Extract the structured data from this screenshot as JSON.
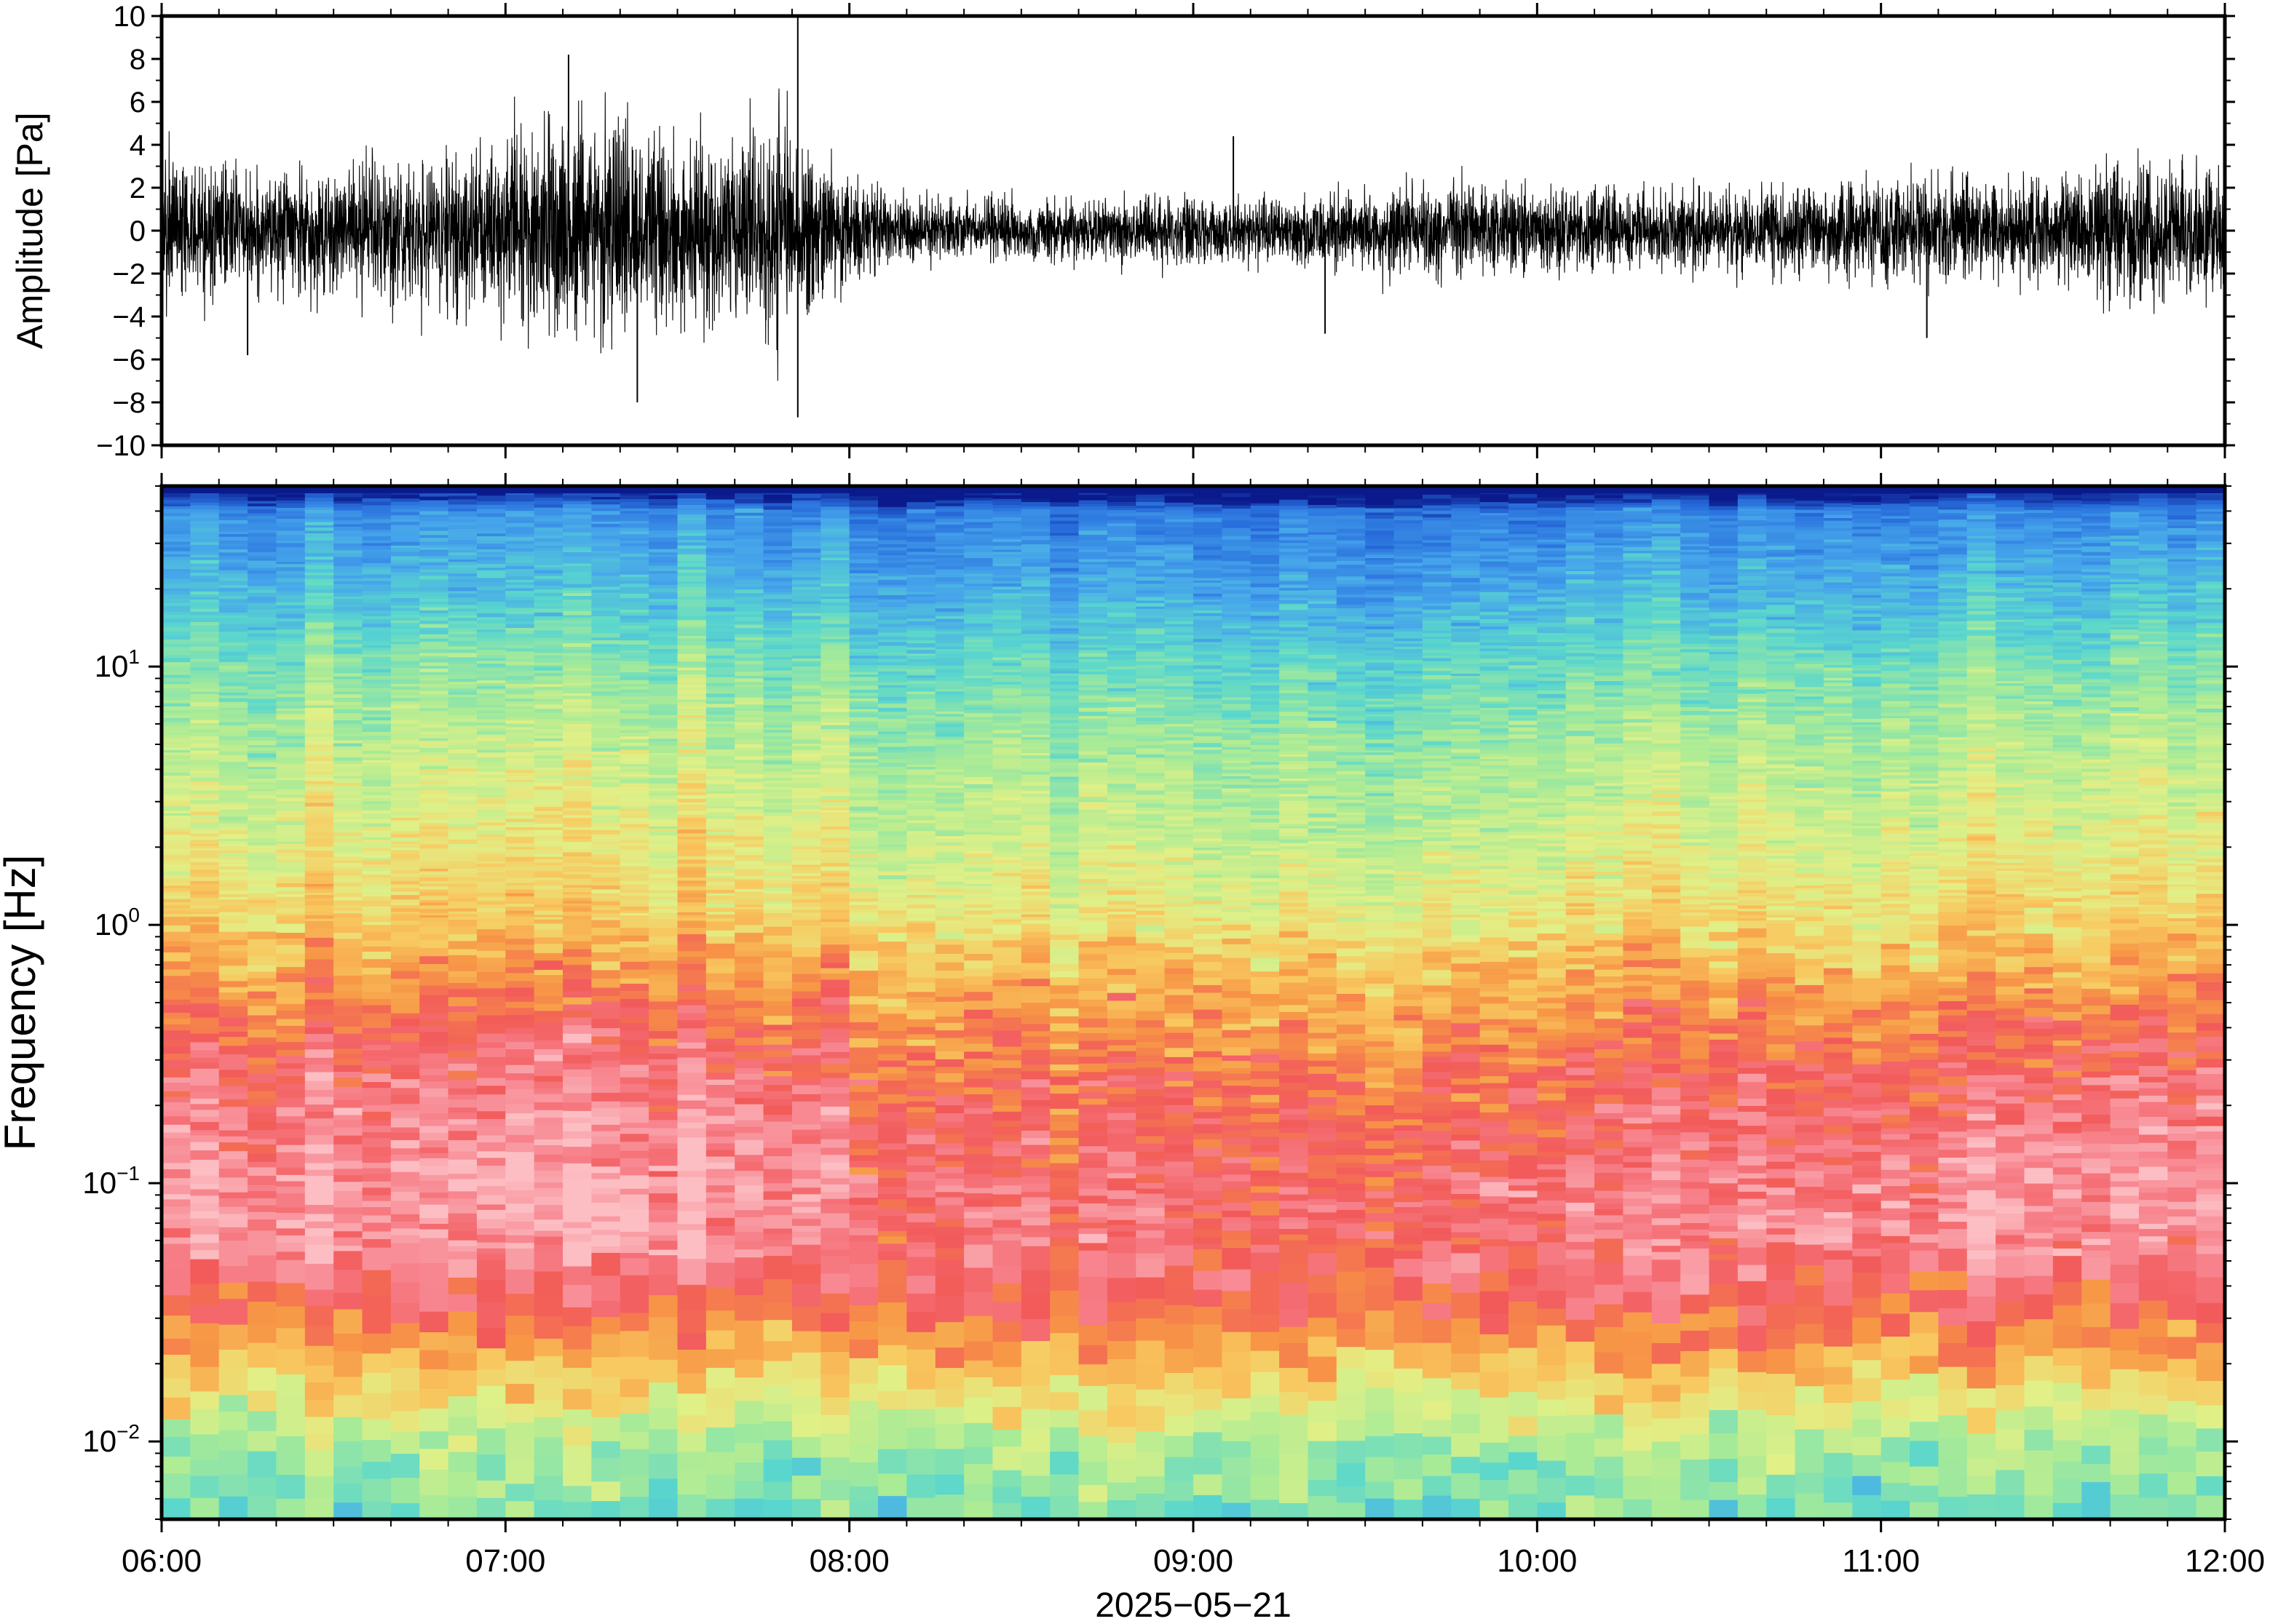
{
  "chart_data": [
    {
      "type": "line",
      "ylabel": "Amplitude [Pa]",
      "ylim": [
        -10,
        10
      ],
      "yticks": [
        "10",
        "8",
        "6",
        "4",
        "2",
        "0",
        "−2",
        "−4",
        "−6",
        "−8",
        "−10"
      ],
      "xlim": [
        "06:00",
        "12:00"
      ],
      "grid": false,
      "series": [
        {
          "note_values": "approximate envelope of the pressure trace: [time, typical peak |amplitude| in Pa]",
          "envelope": [
            [
              "06:00",
              3.5
            ],
            [
              "06:15",
              3.0
            ],
            [
              "06:30",
              3.0
            ],
            [
              "06:45",
              3.5
            ],
            [
              "07:00",
              4.5
            ],
            [
              "07:10",
              5.5
            ],
            [
              "07:20",
              5.0
            ],
            [
              "07:30",
              4.5
            ],
            [
              "07:40",
              4.5
            ],
            [
              "07:50",
              5.0
            ],
            [
              "08:00",
              2.5
            ],
            [
              "08:15",
              1.5
            ],
            [
              "08:30",
              1.5
            ],
            [
              "08:45",
              1.5
            ],
            [
              "09:00",
              1.8
            ],
            [
              "09:15",
              1.5
            ],
            [
              "09:30",
              2.0
            ],
            [
              "09:45",
              2.5
            ],
            [
              "10:00",
              2.0
            ],
            [
              "10:15",
              2.0
            ],
            [
              "10:30",
              2.0
            ],
            [
              "10:45",
              2.0
            ],
            [
              "11:00",
              2.5
            ],
            [
              "11:15",
              2.5
            ],
            [
              "11:30",
              2.5
            ],
            [
              "11:45",
              3.5
            ],
            [
              "12:00",
              3.0
            ]
          ],
          "spikes": [
            [
              "07:11",
              8.2
            ],
            [
              "07:23",
              -8.0
            ],
            [
              "07:51",
              10.0
            ],
            [
              "07:51",
              -8.7
            ],
            [
              "06:15",
              -5.8
            ],
            [
              "09:07",
              4.4
            ],
            [
              "09:23",
              -4.8
            ],
            [
              "11:08",
              -5.0
            ]
          ]
        }
      ]
    },
    {
      "type": "heatmap",
      "ylabel": "Frequency [Hz]",
      "yscale": "log",
      "ylim": [
        0.005,
        50
      ],
      "yticks": [
        "10^1",
        "10^0",
        "10^-1",
        "10^-2"
      ],
      "xlabel": "2025−05−21",
      "xticks": [
        "06:00",
        "07:00",
        "08:00",
        "09:00",
        "10:00",
        "11:00",
        "12:00"
      ],
      "xlim": [
        "06:00",
        "12:00"
      ],
      "colormap": "rainbow",
      "colors": {
        "low": "#0a1a8c",
        "cool": "#3fa0e8",
        "mid": "#d8ef8a",
        "warm": "#f7a048",
        "high": "#f25b5b",
        "peak": "#fba6ae"
      },
      "note_values": "relative power level 0 (dark blue) .. 1 (pale pink) by frequency band",
      "profile": [
        {
          "freq_hz": 45,
          "level": 0.02
        },
        {
          "freq_hz": 40,
          "level": 0.18
        },
        {
          "freq_hz": 20,
          "level": 0.28
        },
        {
          "freq_hz": 10,
          "level": 0.4
        },
        {
          "freq_hz": 5,
          "level": 0.48
        },
        {
          "freq_hz": 2,
          "level": 0.55
        },
        {
          "freq_hz": 1,
          "level": 0.62
        },
        {
          "freq_hz": 0.5,
          "level": 0.74
        },
        {
          "freq_hz": 0.3,
          "level": 0.82
        },
        {
          "freq_hz": 0.15,
          "level": 0.88
        },
        {
          "freq_hz": 0.08,
          "level": 0.92
        },
        {
          "freq_hz": 0.04,
          "level": 0.86
        },
        {
          "freq_hz": 0.025,
          "level": 0.74
        },
        {
          "freq_hz": 0.015,
          "level": 0.6
        },
        {
          "freq_hz": 0.01,
          "level": 0.48
        },
        {
          "freq_hz": 0.005,
          "level": 0.4
        }
      ],
      "time_modulation": [
        [
          "06:00",
          0.04
        ],
        [
          "07:00",
          0.06
        ],
        [
          "07:45",
          0.07
        ],
        [
          "08:00",
          -0.02
        ],
        [
          "09:00",
          -0.05
        ],
        [
          "10:00",
          -0.02
        ],
        [
          "11:00",
          0.0
        ],
        [
          "11:45",
          0.04
        ],
        [
          "12:00",
          0.03
        ]
      ]
    }
  ]
}
